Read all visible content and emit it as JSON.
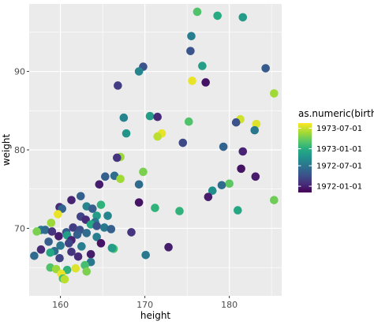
{
  "chart_data": {
    "type": "scatter",
    "xlabel": "height",
    "ylabel": "weight",
    "xlim": [
      156.3,
      186.2
    ],
    "ylim": [
      61.4,
      98.6
    ],
    "x_ticks": [
      160,
      170,
      180
    ],
    "y_ticks": [
      70,
      80,
      90
    ],
    "grid": true,
    "legend": {
      "title": "as.numeric(birth)",
      "placement": "right",
      "type": "colorbar",
      "labels": [
        "1973-07-01",
        "1973-01-01",
        "1972-07-01",
        "1972-01-01"
      ],
      "label_values": [
        0.925,
        0.63,
        0.385,
        0.09
      ]
    },
    "colors": {
      "panel_background": "#ebebeb",
      "grid_major": "#ffffff",
      "colormap": [
        "#440154",
        "#472d7b",
        "#3b528b",
        "#2c728e",
        "#21908d",
        "#27ad81",
        "#5dc863",
        "#aadc32",
        "#fde725"
      ]
    },
    "points": [
      {
        "x": 176.2,
        "y": 97.6,
        "c": 0.72
      },
      {
        "x": 178.6,
        "y": 97.1,
        "c": 0.62
      },
      {
        "x": 181.6,
        "y": 96.9,
        "c": 0.55
      },
      {
        "x": 175.5,
        "y": 94.5,
        "c": 0.42
      },
      {
        "x": 175.4,
        "y": 92.6,
        "c": 0.26
      },
      {
        "x": 176.8,
        "y": 90.7,
        "c": 0.56
      },
      {
        "x": 184.3,
        "y": 90.4,
        "c": 0.28
      },
      {
        "x": 169.8,
        "y": 90.6,
        "c": 0.26
      },
      {
        "x": 169.3,
        "y": 90.0,
        "c": 0.45
      },
      {
        "x": 175.6,
        "y": 88.8,
        "c": 0.97
      },
      {
        "x": 177.2,
        "y": 88.6,
        "c": 0.05
      },
      {
        "x": 166.8,
        "y": 88.2,
        "c": 0.18
      },
      {
        "x": 185.3,
        "y": 87.2,
        "c": 0.86
      },
      {
        "x": 167.5,
        "y": 84.1,
        "c": 0.45
      },
      {
        "x": 170.6,
        "y": 84.3,
        "c": 0.55
      },
      {
        "x": 171.5,
        "y": 84.2,
        "c": 0.12
      },
      {
        "x": 181.3,
        "y": 83.9,
        "c": 0.93
      },
      {
        "x": 180.8,
        "y": 83.5,
        "c": 0.25
      },
      {
        "x": 183.2,
        "y": 83.3,
        "c": 0.95
      },
      {
        "x": 175.2,
        "y": 83.6,
        "c": 0.72
      },
      {
        "x": 183.0,
        "y": 82.5,
        "c": 0.4
      },
      {
        "x": 167.8,
        "y": 82.1,
        "c": 0.52
      },
      {
        "x": 172.0,
        "y": 82.1,
        "c": 0.97
      },
      {
        "x": 171.5,
        "y": 81.7,
        "c": 0.9
      },
      {
        "x": 174.5,
        "y": 80.9,
        "c": 0.22
      },
      {
        "x": 179.3,
        "y": 80.4,
        "c": 0.32
      },
      {
        "x": 181.6,
        "y": 79.8,
        "c": 0.1
      },
      {
        "x": 167.1,
        "y": 79.1,
        "c": 0.85
      },
      {
        "x": 166.7,
        "y": 79.0,
        "c": 0.15
      },
      {
        "x": 181.4,
        "y": 77.6,
        "c": 0.05
      },
      {
        "x": 169.8,
        "y": 77.2,
        "c": 0.8
      },
      {
        "x": 183.1,
        "y": 76.6,
        "c": 0.08
      },
      {
        "x": 166.4,
        "y": 76.7,
        "c": 0.35
      },
      {
        "x": 165.3,
        "y": 76.6,
        "c": 0.3
      },
      {
        "x": 167.1,
        "y": 76.3,
        "c": 0.86
      },
      {
        "x": 164.6,
        "y": 75.6,
        "c": 0.08
      },
      {
        "x": 169.3,
        "y": 75.6,
        "c": 0.35
      },
      {
        "x": 180.0,
        "y": 75.7,
        "c": 0.75
      },
      {
        "x": 179.1,
        "y": 75.5,
        "c": 0.35
      },
      {
        "x": 178.0,
        "y": 74.8,
        "c": 0.5
      },
      {
        "x": 177.5,
        "y": 74.0,
        "c": 0.08
      },
      {
        "x": 162.4,
        "y": 74.1,
        "c": 0.3
      },
      {
        "x": 185.3,
        "y": 73.6,
        "c": 0.78
      },
      {
        "x": 161.3,
        "y": 73.6,
        "c": 0.1
      },
      {
        "x": 169.3,
        "y": 73.3,
        "c": 0.05
      },
      {
        "x": 164.8,
        "y": 73.0,
        "c": 0.65
      },
      {
        "x": 171.2,
        "y": 72.6,
        "c": 0.65
      },
      {
        "x": 163.1,
        "y": 72.8,
        "c": 0.45
      },
      {
        "x": 159.9,
        "y": 72.7,
        "c": 0.12
      },
      {
        "x": 160.2,
        "y": 72.5,
        "c": 0.32
      },
      {
        "x": 163.8,
        "y": 72.5,
        "c": 0.3
      },
      {
        "x": 174.1,
        "y": 72.2,
        "c": 0.65
      },
      {
        "x": 181.0,
        "y": 72.3,
        "c": 0.6
      },
      {
        "x": 159.7,
        "y": 71.8,
        "c": 0.97
      },
      {
        "x": 164.3,
        "y": 71.6,
        "c": 0.55
      },
      {
        "x": 162.4,
        "y": 71.5,
        "c": 0.2
      },
      {
        "x": 165.6,
        "y": 71.6,
        "c": 0.45
      },
      {
        "x": 163.0,
        "y": 71.1,
        "c": 0.12
      },
      {
        "x": 164.1,
        "y": 70.8,
        "c": 0.4
      },
      {
        "x": 158.9,
        "y": 70.7,
        "c": 0.85
      },
      {
        "x": 163.6,
        "y": 70.5,
        "c": 0.6
      },
      {
        "x": 164.3,
        "y": 70.3,
        "c": 0.25
      },
      {
        "x": 161.5,
        "y": 70.1,
        "c": 0.18
      },
      {
        "x": 165.2,
        "y": 70.1,
        "c": 0.4
      },
      {
        "x": 157.7,
        "y": 69.8,
        "c": 0.42
      },
      {
        "x": 158.2,
        "y": 69.8,
        "c": 0.35
      },
      {
        "x": 159.0,
        "y": 69.6,
        "c": 0.15
      },
      {
        "x": 157.2,
        "y": 69.6,
        "c": 0.8
      },
      {
        "x": 168.4,
        "y": 69.5,
        "c": 0.15
      },
      {
        "x": 162.3,
        "y": 69.8,
        "c": 0.25
      },
      {
        "x": 166.0,
        "y": 69.9,
        "c": 0.3
      },
      {
        "x": 160.7,
        "y": 69.5,
        "c": 0.28
      },
      {
        "x": 163.1,
        "y": 69.4,
        "c": 0.35
      },
      {
        "x": 162.0,
        "y": 69.2,
        "c": 0.3
      },
      {
        "x": 160.8,
        "y": 69.1,
        "c": 0.55
      },
      {
        "x": 159.8,
        "y": 69.0,
        "c": 0.08
      },
      {
        "x": 164.3,
        "y": 68.9,
        "c": 0.42
      },
      {
        "x": 161.3,
        "y": 68.5,
        "c": 0.1
      },
      {
        "x": 158.6,
        "y": 68.3,
        "c": 0.3
      },
      {
        "x": 164.8,
        "y": 68.1,
        "c": 0.05
      },
      {
        "x": 161.0,
        "y": 68.1,
        "c": 0.2
      },
      {
        "x": 160.0,
        "y": 67.8,
        "c": 0.4
      },
      {
        "x": 162.5,
        "y": 67.7,
        "c": 0.42
      },
      {
        "x": 172.8,
        "y": 67.6,
        "c": 0.08
      },
      {
        "x": 166.3,
        "y": 67.4,
        "c": 0.7
      },
      {
        "x": 166.1,
        "y": 67.5,
        "c": 0.55
      },
      {
        "x": 157.7,
        "y": 67.3,
        "c": 0.12
      },
      {
        "x": 159.3,
        "y": 67.1,
        "c": 0.35
      },
      {
        "x": 161.3,
        "y": 67.0,
        "c": 0.15
      },
      {
        "x": 158.8,
        "y": 66.9,
        "c": 0.6
      },
      {
        "x": 163.6,
        "y": 66.7,
        "c": 0.08
      },
      {
        "x": 170.1,
        "y": 66.6,
        "c": 0.4
      },
      {
        "x": 156.9,
        "y": 66.5,
        "c": 0.35
      },
      {
        "x": 162.1,
        "y": 66.4,
        "c": 0.12
      },
      {
        "x": 159.9,
        "y": 66.2,
        "c": 0.2
      },
      {
        "x": 163.6,
        "y": 65.7,
        "c": 0.4
      },
      {
        "x": 162.9,
        "y": 65.3,
        "c": 0.7
      },
      {
        "x": 158.8,
        "y": 65.0,
        "c": 0.72
      },
      {
        "x": 161.8,
        "y": 64.9,
        "c": 0.95
      },
      {
        "x": 159.5,
        "y": 64.8,
        "c": 0.85
      },
      {
        "x": 160.8,
        "y": 64.7,
        "c": 0.65
      },
      {
        "x": 163.1,
        "y": 64.5,
        "c": 0.8
      },
      {
        "x": 160.1,
        "y": 64.2,
        "c": 0.97
      },
      {
        "x": 160.3,
        "y": 63.6,
        "c": 0.7
      },
      {
        "x": 160.5,
        "y": 63.5,
        "c": 0.9
      }
    ]
  }
}
